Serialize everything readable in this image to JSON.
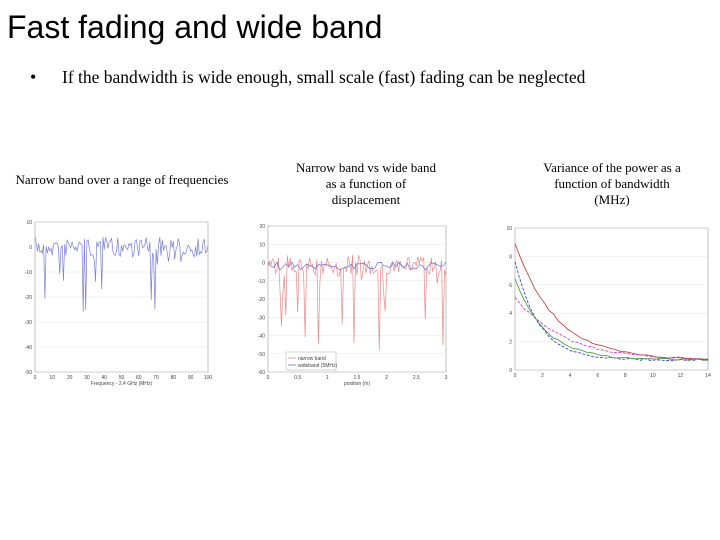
{
  "title": "Fast fading and wide band",
  "bullet": "If the bandwidth is wide enough, small scale (fast) fading can be neglected",
  "panels": [
    {
      "caption": [
        "Narrow band over a range of frequencies"
      ],
      "yticks": [
        "10",
        "0",
        "-10",
        "-20",
        "-30",
        "-40",
        "-50"
      ],
      "xticks": [
        "0",
        "10",
        "20",
        "30",
        "40",
        "50",
        "60",
        "70",
        "80",
        "90",
        "100"
      ],
      "xlabel": "Frequency - 2.4 GHz (MHz)"
    },
    {
      "caption": [
        "Narrow band vs wide band",
        "as a function of",
        "displacement"
      ],
      "yticks": [
        "20",
        "10",
        "0",
        "-10",
        "-20",
        "-30",
        "-40",
        "-50",
        "-60"
      ],
      "xticks": [
        "0",
        "0.5",
        "1",
        "1.5",
        "2",
        "2.5",
        "3"
      ],
      "xlabel": "position (m)",
      "legend": [
        "narrow band",
        "wideband (5MHz)"
      ]
    },
    {
      "caption": [
        "Variance of the power as a",
        "function of bandwidth",
        "(MHz)"
      ],
      "yticks": [
        "10",
        "8",
        "6",
        "4",
        "2",
        "0"
      ],
      "xticks": [
        "0",
        "2",
        "4",
        "6",
        "8",
        "10",
        "12",
        "14"
      ]
    }
  ]
}
